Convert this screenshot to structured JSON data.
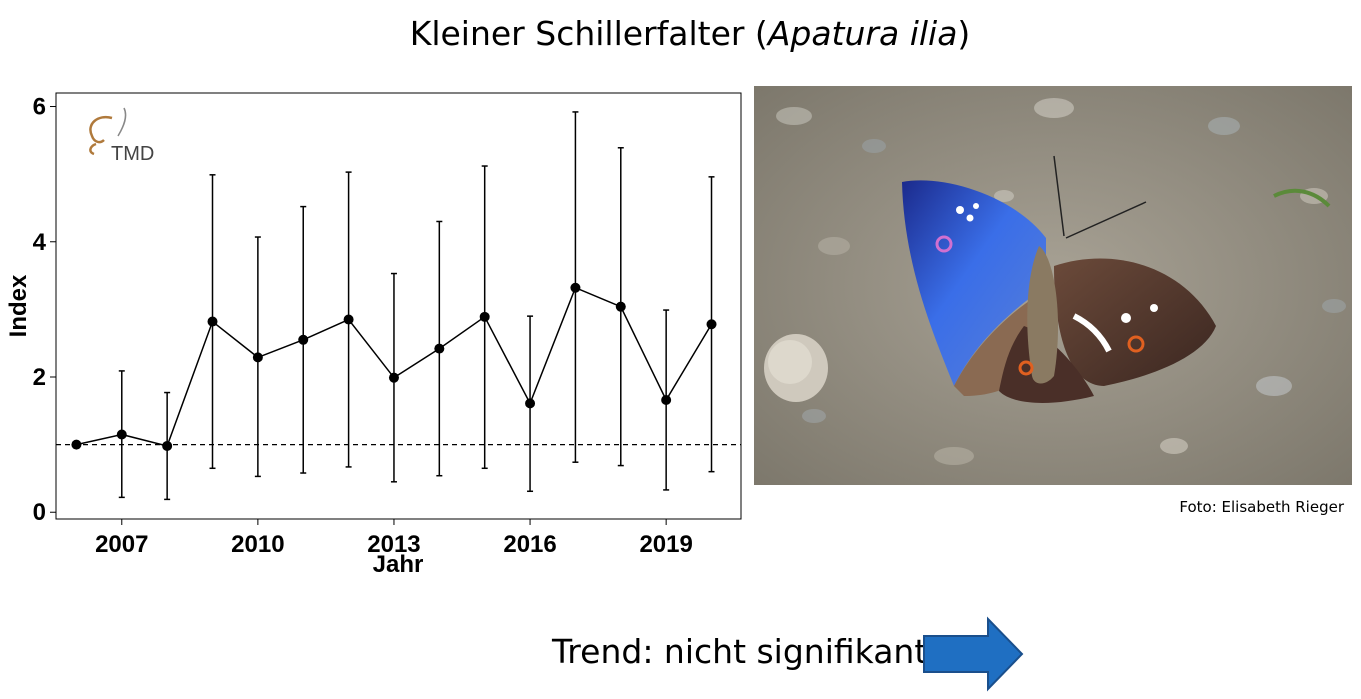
{
  "slide": {
    "title_prefix": "Kleiner Schillerfalter (",
    "title_species": "Apatura ilia",
    "title_suffix": ")",
    "photo_credit": "Foto: Elisabeth Rieger",
    "trend_text": "Trend: nicht signifikant",
    "logo_text": "TMD"
  },
  "chart_data": {
    "type": "line",
    "title": "",
    "xlabel": "Jahr",
    "ylabel": "Index",
    "x": [
      2006,
      2007,
      2008,
      2009,
      2010,
      2011,
      2012,
      2013,
      2014,
      2015,
      2016,
      2017,
      2018,
      2019,
      2020
    ],
    "values": [
      1.0,
      1.15,
      0.98,
      2.82,
      2.29,
      2.55,
      2.85,
      1.99,
      2.42,
      2.89,
      1.61,
      3.32,
      3.04,
      1.66,
      2.78
    ],
    "error_lower": [
      1.0,
      0.22,
      0.19,
      0.65,
      0.53,
      0.58,
      0.67,
      0.45,
      0.54,
      0.65,
      0.31,
      0.74,
      0.69,
      0.33,
      0.6
    ],
    "error_upper": [
      1.0,
      2.09,
      1.77,
      4.99,
      4.07,
      4.52,
      5.03,
      3.53,
      4.3,
      5.12,
      2.9,
      5.92,
      5.39,
      2.99,
      4.96
    ],
    "reference_line": 1.0,
    "xticks": [
      2007,
      2010,
      2013,
      2016,
      2019
    ],
    "yticks": [
      0,
      2,
      4,
      6
    ],
    "xlim": [
      2005.55,
      2020.65
    ],
    "ylim": [
      -0.1,
      6.2
    ],
    "grid": false,
    "colors": {
      "line": "#000000",
      "logo": "#b07a3c",
      "arrow": "#1f6fc2"
    }
  }
}
